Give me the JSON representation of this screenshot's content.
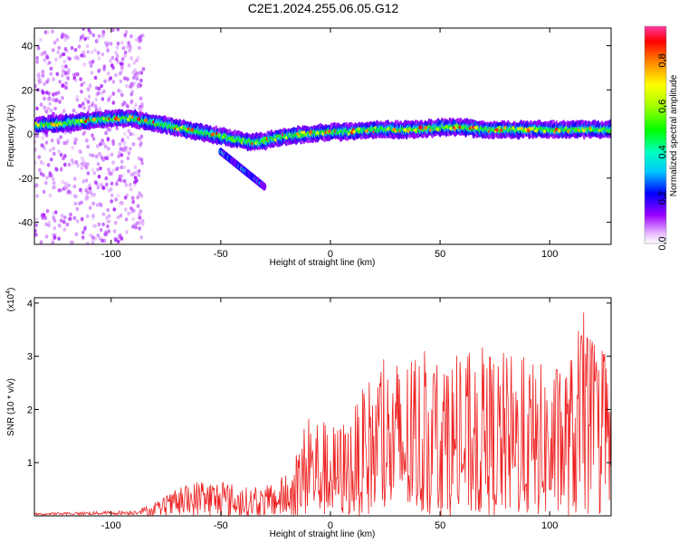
{
  "title": "C2E1.2024.255.06.05.G12",
  "chart_data": [
    {
      "type": "heatmap",
      "xlabel": "Height of straight line (km)",
      "ylabel": "Frequency (Hz)",
      "xlim": [
        -135,
        128
      ],
      "ylim": [
        -50,
        48
      ],
      "x_ticks": [
        -100,
        -50,
        0,
        50,
        100
      ],
      "x_tick_labels": [
        "-100",
        "-50",
        "0",
        "50",
        "100"
      ],
      "y_ticks": [
        -40,
        -20,
        0,
        20,
        40
      ],
      "y_tick_labels": [
        "-40",
        "-20",
        "0",
        "20",
        "40"
      ],
      "ridge": {
        "x": [
          -133,
          -120,
          -110,
          -100,
          -90,
          -80,
          -70,
          -60,
          -50,
          -45,
          -40,
          -35,
          -30,
          -20,
          -10,
          0,
          10,
          20,
          30,
          40,
          50,
          60,
          70,
          80,
          90,
          100,
          110,
          120,
          128
        ],
        "y": [
          4,
          5,
          6,
          7,
          7,
          5,
          3,
          1,
          -1,
          -2,
          -3,
          -4,
          -3,
          -1,
          0,
          1,
          1,
          2,
          2,
          2,
          3,
          3,
          2,
          2,
          2,
          2,
          2,
          2,
          2
        ]
      },
      "branch": {
        "x": [
          -50,
          -45,
          -40,
          -35,
          -30
        ],
        "y": [
          -8,
          -12,
          -16,
          -20,
          -24
        ]
      },
      "colorbar": {
        "label": "Normalized spectral amplitude",
        "range": [
          0.0,
          0.95
        ],
        "ticks": [
          0.0,
          0.2,
          0.4,
          0.6,
          0.8
        ],
        "tick_labels": [
          "0.0",
          "0.2",
          "0.4",
          "0.6",
          "0.8"
        ]
      }
    },
    {
      "type": "line",
      "xlabel": "Height of straight line (km)",
      "ylabel": "SNR (10 * v/v)",
      "y_multiplier": "(x10",
      "y_multiplier_exp": "4",
      "y_multiplier_close": ")",
      "xlim": [
        -135,
        128
      ],
      "ylim": [
        0,
        4.1
      ],
      "x_ticks": [
        -100,
        -50,
        0,
        50,
        100
      ],
      "x_tick_labels": [
        "-100",
        "-50",
        "0",
        "50",
        "100"
      ],
      "y_ticks": [
        1,
        2,
        3,
        4
      ],
      "y_tick_labels": [
        "1",
        "2",
        "3",
        "4"
      ],
      "color": "#ee2222",
      "envelope": {
        "x": [
          -135,
          -110,
          -90,
          -80,
          -70,
          -60,
          -50,
          -40,
          -30,
          -20,
          -15,
          -10,
          -5,
          0,
          5,
          10,
          15,
          20,
          30,
          40,
          50,
          60,
          70,
          80,
          90,
          100,
          110,
          115,
          120,
          128
        ],
        "y": [
          0.05,
          0.08,
          0.1,
          0.25,
          0.5,
          0.7,
          0.7,
          0.55,
          0.55,
          0.8,
          1.2,
          2.1,
          1.9,
          1.7,
          1.8,
          2.0,
          2.4,
          2.9,
          3.0,
          3.1,
          3.1,
          3.0,
          3.2,
          3.1,
          3.0,
          2.8,
          3.1,
          3.9,
          3.3,
          3.0
        ]
      }
    }
  ]
}
